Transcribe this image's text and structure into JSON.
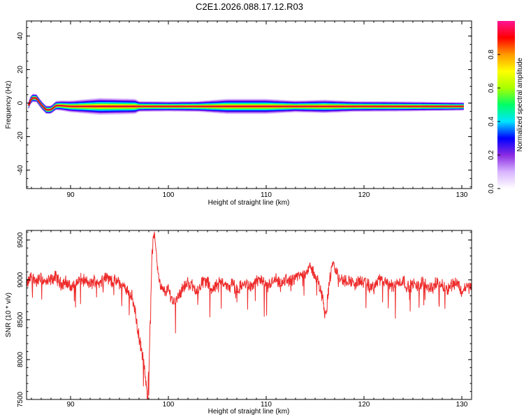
{
  "figure": {
    "title": "C2E1.2026.088.17.12.R03"
  },
  "colors": {
    "snr_line": "#ee2a2a",
    "ridge": "#e0102a",
    "spectrum_stops": [
      "#ffffff",
      "#d8b4ff",
      "#8a2be2",
      "#0000ff",
      "#00e5ff",
      "#00ff66",
      "#a8ff00",
      "#ffff00",
      "#ff9900",
      "#ff0000",
      "#ff1493"
    ]
  },
  "chart_data": [
    {
      "type": "heatmap",
      "name": "spectrogram",
      "xlabel": "Height of straight line (km)",
      "ylabel": "Frequency (Hz)",
      "xlim": [
        85.5,
        131
      ],
      "ylim": [
        -51,
        49
      ],
      "x_ticks": [
        90,
        100,
        110,
        120,
        130
      ],
      "y_ticks": [
        40,
        20,
        0,
        -20,
        -40
      ],
      "colorbar": {
        "label": "Normalized spectral amplitude",
        "range": [
          0,
          1
        ],
        "ticks": [
          "0.0",
          "0.2",
          "0.4",
          "0.6",
          "0.8"
        ]
      },
      "ridge": [
        [
          85.7,
          -1.5
        ],
        [
          86.0,
          3
        ],
        [
          86.5,
          3
        ],
        [
          87.0,
          -1
        ],
        [
          87.5,
          -4
        ],
        [
          88.0,
          -4
        ],
        [
          88.5,
          -1.5
        ],
        [
          89.0,
          -1.5
        ],
        [
          90.0,
          -2
        ],
        [
          95.0,
          -2
        ],
        [
          97.0,
          -2
        ],
        [
          100.0,
          -2
        ],
        [
          110.0,
          -2
        ],
        [
          120.0,
          -2
        ],
        [
          130.0,
          -2
        ]
      ],
      "spread": [
        [
          86.0,
          2.5
        ],
        [
          88.0,
          2.5
        ],
        [
          90.0,
          3.5
        ],
        [
          93.0,
          5
        ],
        [
          96.6,
          4.5
        ],
        [
          97.0,
          3.2
        ],
        [
          100.0,
          3
        ],
        [
          103.0,
          3.2
        ],
        [
          106.0,
          4.5
        ],
        [
          110.0,
          4.5
        ],
        [
          113.0,
          3.5
        ],
        [
          116.0,
          4
        ],
        [
          119.0,
          3.2
        ],
        [
          124.0,
          3
        ],
        [
          130.0,
          2.5
        ]
      ]
    },
    {
      "type": "line",
      "name": "snr",
      "xlabel": "Height of straight line (km)",
      "ylabel": "SNR (10 * v/v)",
      "xlim": [
        85.5,
        131
      ],
      "ylim": [
        7500,
        9620
      ],
      "x_ticks": [
        90,
        100,
        110,
        120,
        130
      ],
      "y_ticks": [
        9500,
        9000,
        8500,
        8000,
        7500
      ],
      "series": [
        {
          "x": [
            85.5,
            86.0,
            86.5,
            87.0,
            87.5,
            88.0,
            88.5,
            89.0,
            89.5,
            90.0,
            90.5,
            91.0,
            91.5,
            92.0,
            92.5,
            93.0,
            93.5,
            94.0,
            94.5,
            95.0,
            95.5,
            96.0,
            96.3,
            96.6,
            96.9,
            97.2,
            97.5,
            97.7,
            97.85,
            98.0,
            98.15,
            98.3,
            98.5,
            98.7,
            98.9,
            99.2,
            99.6,
            100.0,
            100.5,
            101.0,
            101.5,
            102.0,
            102.5,
            103.0,
            103.5,
            104.0,
            104.5,
            105.0,
            105.5,
            106.0,
            106.5,
            107.0,
            107.5,
            108.0,
            108.5,
            109.0,
            109.5,
            110.0,
            110.5,
            111.0,
            111.5,
            112.0,
            112.5,
            113.0,
            113.5,
            114.0,
            114.5,
            115.0,
            115.5,
            115.8,
            116.0,
            116.2,
            116.5,
            116.8,
            117.0,
            117.5,
            118.0,
            118.5,
            119.0,
            119.5,
            120.0,
            120.5,
            121.0,
            121.5,
            122.0,
            122.5,
            123.0,
            123.5,
            124.0,
            124.5,
            125.0,
            125.5,
            126.0,
            126.5,
            127.0,
            127.5,
            128.0,
            128.5,
            129.0,
            129.5,
            130.0,
            130.5,
            131.0
          ],
          "y": [
            8930,
            9050,
            8980,
            9020,
            8960,
            9000,
            9040,
            8950,
            8980,
            8900,
            8950,
            9010,
            8980,
            8940,
            9000,
            8960,
            9050,
            9000,
            8980,
            8960,
            8900,
            8850,
            8780,
            8600,
            8350,
            8150,
            7950,
            7700,
            7530,
            7850,
            8500,
            9250,
            9580,
            9450,
            9150,
            8900,
            8850,
            8880,
            8720,
            8800,
            8900,
            8960,
            8920,
            8850,
            9000,
            8970,
            8880,
            8940,
            9000,
            8900,
            8960,
            8860,
            8930,
            8950,
            8900,
            9000,
            8990,
            8900,
            8960,
            9000,
            8920,
            9010,
            8980,
            9040,
            9050,
            9100,
            9150,
            9070,
            8900,
            8760,
            8550,
            8680,
            9000,
            9200,
            9150,
            9020,
            8980,
            9000,
            8940,
            8990,
            8960,
            8920,
            8900,
            9010,
            8970,
            8940,
            8930,
            8960,
            9000,
            8900,
            8950,
            8910,
            8980,
            8920,
            8900,
            8970,
            8930,
            8880,
            8950,
            8970,
            8850,
            8920,
            8900
          ]
        }
      ]
    }
  ]
}
